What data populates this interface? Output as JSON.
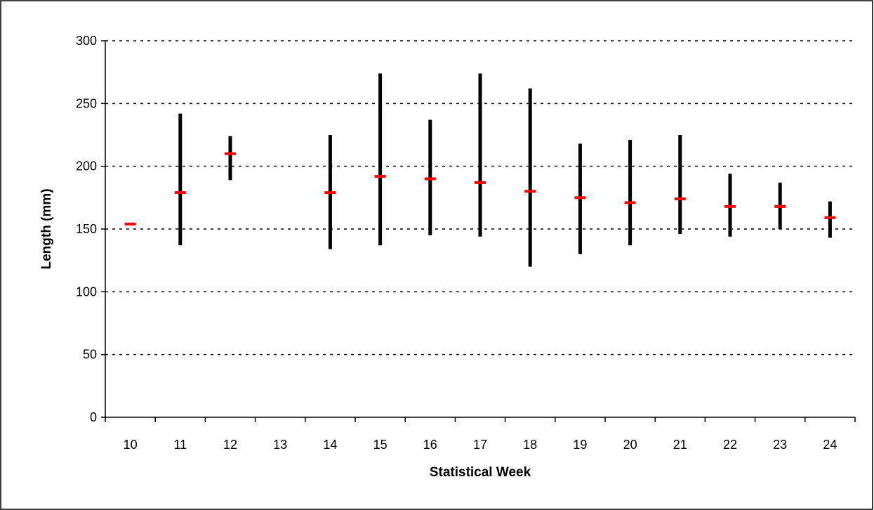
{
  "chart_data": {
    "type": "range",
    "title": "",
    "xlabel": "Statistical Week",
    "ylabel": "Length (mm)",
    "ylim": [
      0,
      300
    ],
    "yticks": [
      "0",
      "50",
      "100",
      "150",
      "200",
      "250",
      "300"
    ],
    "categories": [
      "10",
      "11",
      "12",
      "13",
      "14",
      "15",
      "16",
      "17",
      "18",
      "19",
      "20",
      "21",
      "22",
      "23",
      "24"
    ],
    "series": [
      {
        "min": [
          null,
          137,
          189,
          null,
          134,
          137,
          145,
          144,
          120,
          130,
          137,
          146,
          144,
          150,
          143
        ],
        "max": [
          null,
          242,
          224,
          null,
          225,
          274,
          237,
          274,
          262,
          218,
          221,
          225,
          194,
          187,
          172
        ],
        "mean": [
          154,
          179,
          210,
          null,
          179,
          192,
          190,
          187,
          180,
          175,
          171,
          174,
          168,
          168,
          159
        ]
      }
    ],
    "grid": {
      "y_major": true,
      "style": "dotted"
    },
    "legend": "none",
    "colors": {
      "range": "#000000",
      "mean": "#ff0000",
      "text": "#000000",
      "background": "#ffffff"
    }
  }
}
